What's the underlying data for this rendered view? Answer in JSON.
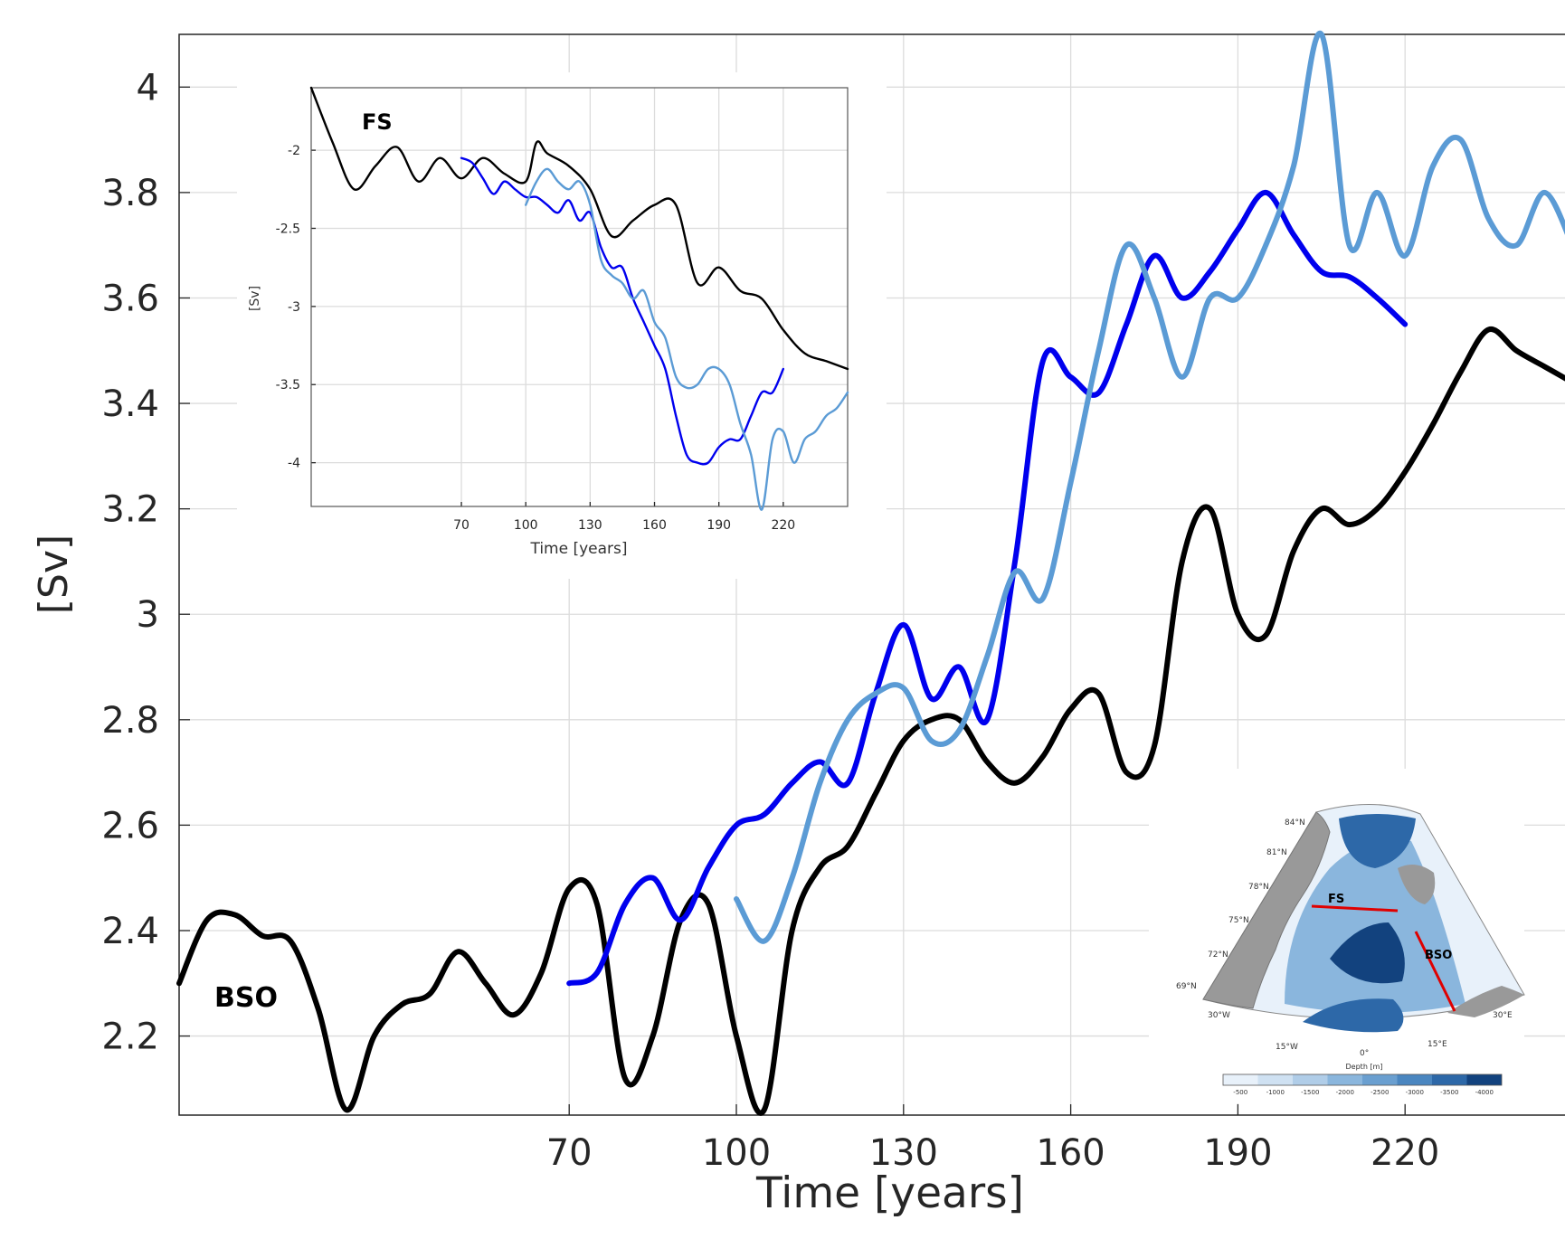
{
  "chart_data": [
    {
      "id": "main",
      "type": "line",
      "xlabel": "Time [years]",
      "ylabel": "[Sv]",
      "annotation": "BSO",
      "xlim": [
        0,
        250
      ],
      "ylim": [
        2.05,
        4.1
      ],
      "xticks": [
        70,
        100,
        130,
        160,
        190,
        220
      ],
      "yticks": [
        2.2,
        2.4,
        2.6,
        2.8,
        3,
        3.2,
        3.4,
        3.6,
        3.8,
        4
      ],
      "ytick_labels": [
        "2.2",
        "2.4",
        "2.6",
        "2.8",
        "3",
        "3.2",
        "3.4",
        "3.6",
        "3.8",
        "4"
      ],
      "grid": true,
      "series": [
        {
          "color": "#000000",
          "x": [
            0,
            5,
            10,
            15,
            20,
            25,
            30,
            35,
            40,
            45,
            50,
            55,
            60,
            65,
            70,
            75,
            80,
            85,
            90,
            95,
            100,
            105,
            110,
            115,
            120,
            125,
            130,
            135,
            140,
            145,
            150,
            155,
            160,
            165,
            170,
            175,
            180,
            185,
            190,
            195,
            200,
            205,
            210,
            215,
            220,
            225,
            230,
            235,
            240,
            245,
            250
          ],
          "y": [
            2.3,
            2.42,
            2.43,
            2.39,
            2.38,
            2.25,
            2.06,
            2.2,
            2.26,
            2.28,
            2.36,
            2.3,
            2.24,
            2.32,
            2.48,
            2.45,
            2.12,
            2.2,
            2.42,
            2.45,
            2.2,
            2.06,
            2.4,
            2.52,
            2.56,
            2.66,
            2.76,
            2.8,
            2.8,
            2.72,
            2.68,
            2.73,
            2.82,
            2.85,
            2.7,
            2.75,
            3.1,
            3.2,
            3.0,
            2.96,
            3.12,
            3.2,
            3.17,
            3.2,
            3.27,
            3.36,
            3.46,
            3.54,
            3.5,
            3.47,
            3.44
          ]
        },
        {
          "color": "#0000ee",
          "x": [
            70,
            75,
            80,
            85,
            90,
            95,
            100,
            105,
            110,
            115,
            120,
            125,
            130,
            135,
            140,
            145,
            150,
            155,
            160,
            165,
            170,
            175,
            180,
            185,
            190,
            195,
            200,
            205,
            210,
            215,
            220
          ],
          "y": [
            2.3,
            2.32,
            2.45,
            2.5,
            2.42,
            2.52,
            2.6,
            2.62,
            2.68,
            2.72,
            2.68,
            2.85,
            2.98,
            2.84,
            2.9,
            2.8,
            3.1,
            3.48,
            3.45,
            3.42,
            3.55,
            3.68,
            3.6,
            3.65,
            3.73,
            3.8,
            3.72,
            3.65,
            3.64,
            3.6,
            3.55
          ]
        },
        {
          "color": "#5b9bd5",
          "x": [
            100,
            105,
            110,
            115,
            120,
            125,
            130,
            135,
            140,
            145,
            150,
            155,
            160,
            165,
            170,
            175,
            180,
            185,
            190,
            195,
            200,
            205,
            210,
            215,
            220,
            225,
            230,
            235,
            240,
            245,
            250
          ],
          "y": [
            2.46,
            2.38,
            2.5,
            2.68,
            2.8,
            2.85,
            2.86,
            2.76,
            2.78,
            2.92,
            3.08,
            3.03,
            3.25,
            3.5,
            3.7,
            3.6,
            3.45,
            3.6,
            3.6,
            3.7,
            3.85,
            4.1,
            3.7,
            3.8,
            3.68,
            3.85,
            3.9,
            3.75,
            3.7,
            3.8,
            3.7
          ]
        }
      ]
    },
    {
      "id": "inset-fs",
      "type": "line",
      "xlabel": "Time [years]",
      "ylabel": "[Sv]",
      "annotation": "FS",
      "xlim": [
        0,
        250
      ],
      "ylim": [
        -4.28,
        -1.6
      ],
      "xticks": [
        70,
        100,
        130,
        160,
        190,
        220
      ],
      "yticks": [
        -4,
        -3.5,
        -3,
        -2.5,
        -2
      ],
      "ytick_labels": [
        "-4",
        "-3.5",
        "-3",
        "-2.5",
        "-2"
      ],
      "grid": true,
      "series": [
        {
          "color": "#000000",
          "x": [
            0,
            10,
            20,
            30,
            40,
            50,
            60,
            70,
            80,
            90,
            100,
            105,
            110,
            120,
            130,
            140,
            150,
            160,
            170,
            180,
            190,
            200,
            210,
            220,
            230,
            240,
            250
          ],
          "y": [
            -1.6,
            -1.95,
            -2.25,
            -2.1,
            -1.98,
            -2.2,
            -2.05,
            -2.18,
            -2.05,
            -2.15,
            -2.2,
            -1.95,
            -2.02,
            -2.1,
            -2.25,
            -2.55,
            -2.45,
            -2.35,
            -2.35,
            -2.85,
            -2.75,
            -2.9,
            -2.95,
            -3.15,
            -3.3,
            -3.35,
            -3.4
          ]
        },
        {
          "color": "#0000ee",
          "x": [
            70,
            75,
            80,
            85,
            90,
            95,
            100,
            105,
            110,
            115,
            120,
            125,
            130,
            135,
            140,
            145,
            150,
            155,
            160,
            165,
            170,
            175,
            180,
            185,
            190,
            195,
            200,
            205,
            210,
            215,
            220
          ],
          "y": [
            -2.05,
            -2.08,
            -2.18,
            -2.28,
            -2.2,
            -2.25,
            -2.3,
            -2.3,
            -2.35,
            -2.4,
            -2.32,
            -2.45,
            -2.4,
            -2.62,
            -2.75,
            -2.75,
            -2.95,
            -3.1,
            -3.25,
            -3.4,
            -3.7,
            -3.95,
            -4.0,
            -4.0,
            -3.9,
            -3.85,
            -3.85,
            -3.7,
            -3.55,
            -3.55,
            -3.4
          ]
        },
        {
          "color": "#5b9bd5",
          "x": [
            100,
            105,
            110,
            115,
            120,
            125,
            130,
            135,
            140,
            145,
            150,
            155,
            160,
            165,
            170,
            175,
            180,
            185,
            190,
            195,
            200,
            205,
            210,
            215,
            220,
            225,
            230,
            235,
            240,
            245,
            250
          ],
          "y": [
            -2.35,
            -2.2,
            -2.12,
            -2.2,
            -2.25,
            -2.2,
            -2.35,
            -2.7,
            -2.8,
            -2.85,
            -2.95,
            -2.9,
            -3.1,
            -3.2,
            -3.45,
            -3.52,
            -3.5,
            -3.4,
            -3.4,
            -3.5,
            -3.75,
            -3.95,
            -4.3,
            -3.85,
            -3.8,
            -4.0,
            -3.85,
            -3.8,
            -3.7,
            -3.65,
            -3.55
          ]
        }
      ]
    }
  ],
  "map_inset": {
    "labels": {
      "fs": "FS",
      "bso": "BSO",
      "lat_84": "84°N",
      "lat_81": "81°N",
      "lat_78": "78°N",
      "lat_75": "75°N",
      "lat_72": "72°N",
      "lat_69": "69°N",
      "lon_30w": "30°W",
      "lon_15w": "15°W",
      "lon_0": "0°",
      "lon_15e": "15°E",
      "lon_30e": "30°E",
      "colorbar_title": "Depth [m]"
    },
    "colorbar_ticks": [
      "-500",
      "-1000",
      "-1500",
      "-2000",
      "-2500",
      "-3000",
      "-3500",
      "-4000"
    ],
    "colors": [
      "#e8f1fa",
      "#cfe1f2",
      "#b0cde8",
      "#8ab6dd",
      "#6a9fd0",
      "#4a86c0",
      "#2d68a8",
      "#12427e"
    ]
  }
}
